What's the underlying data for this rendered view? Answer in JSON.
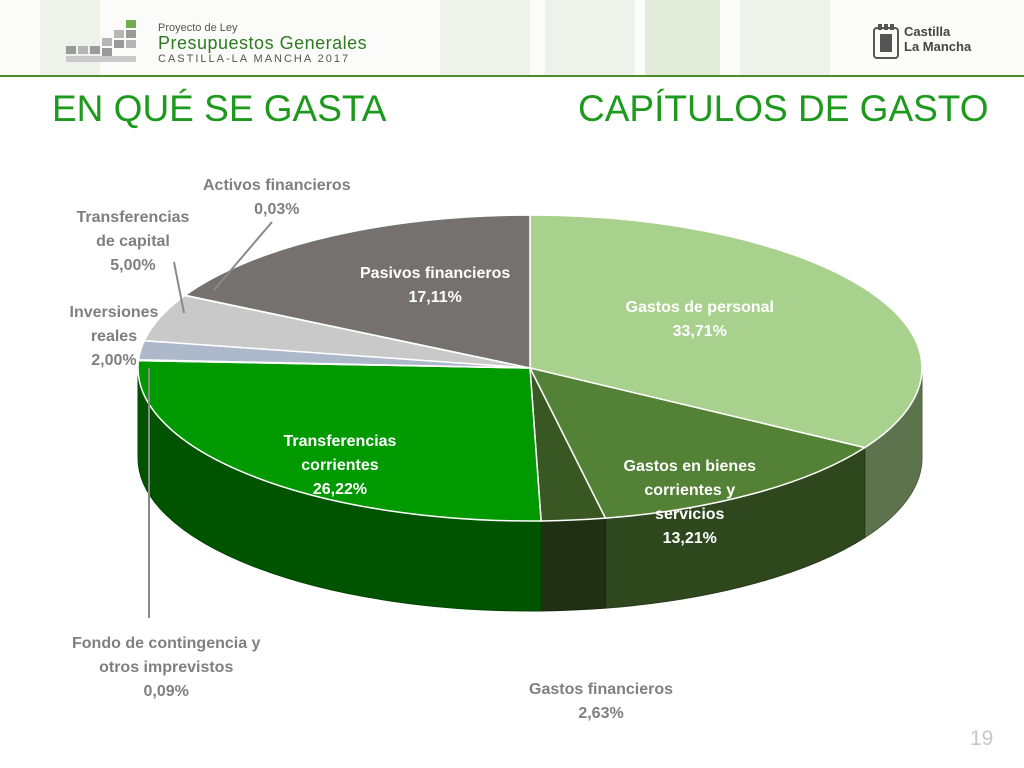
{
  "header": {
    "logo_line1": "Proyecto de Ley",
    "logo_line2": "Presupuestos Generales",
    "logo_line3": "CASTILLA-LA MANCHA 2017",
    "region_line1": "Castilla",
    "region_line2": "La Mancha"
  },
  "title_left": "EN QUÉ SE GASTA",
  "title_right": "CAPÍTULOS DE GASTO",
  "page_number": "19",
  "chart_data": {
    "type": "pie",
    "title": "CAPÍTULOS DE GASTO",
    "slices": [
      {
        "name": "Gastos de personal",
        "lines": [
          "Gastos de personal"
        ],
        "value": 33.71,
        "label": "33,71%",
        "color": "#a9d18e"
      },
      {
        "name": "Gastos en bienes corrientes y servicios",
        "lines": [
          "Gastos en bienes",
          "corrientes y",
          "servicios"
        ],
        "value": 13.21,
        "label": "13,21%",
        "color": "#538135"
      },
      {
        "name": "Gastos financieros",
        "lines": [
          "Gastos financieros"
        ],
        "value": 2.63,
        "label": "2,63%",
        "color": "#385723"
      },
      {
        "name": "Transferencias corrientes",
        "lines": [
          "Transferencias",
          "corrientes"
        ],
        "value": 26.22,
        "label": "26,22%",
        "color": "#009900"
      },
      {
        "name": "Fondo de contingencia y otros imprevistos",
        "lines": [
          "Fondo de contingencia y",
          "otros imprevistos"
        ],
        "value": 0.09,
        "label": "0,09%",
        "color": "#66aa66"
      },
      {
        "name": "Inversiones reales",
        "lines": [
          "Inversiones",
          "reales"
        ],
        "value": 2.0,
        "label": "2,00%",
        "color": "#adb9ca"
      },
      {
        "name": "Transferencias de capital",
        "lines": [
          "Transferencias",
          "de capital"
        ],
        "value": 5.0,
        "label": "5,00%",
        "color": "#c9c9c9"
      },
      {
        "name": "Activos financieros",
        "lines": [
          "Activos financieros"
        ],
        "value": 0.03,
        "label": "0,03%",
        "color": "#e7e6e6"
      },
      {
        "name": "Pasivos financieros",
        "lines": [
          "Pasivos financieros"
        ],
        "value": 17.11,
        "label": "17,11%",
        "color": "#767171"
      }
    ]
  }
}
